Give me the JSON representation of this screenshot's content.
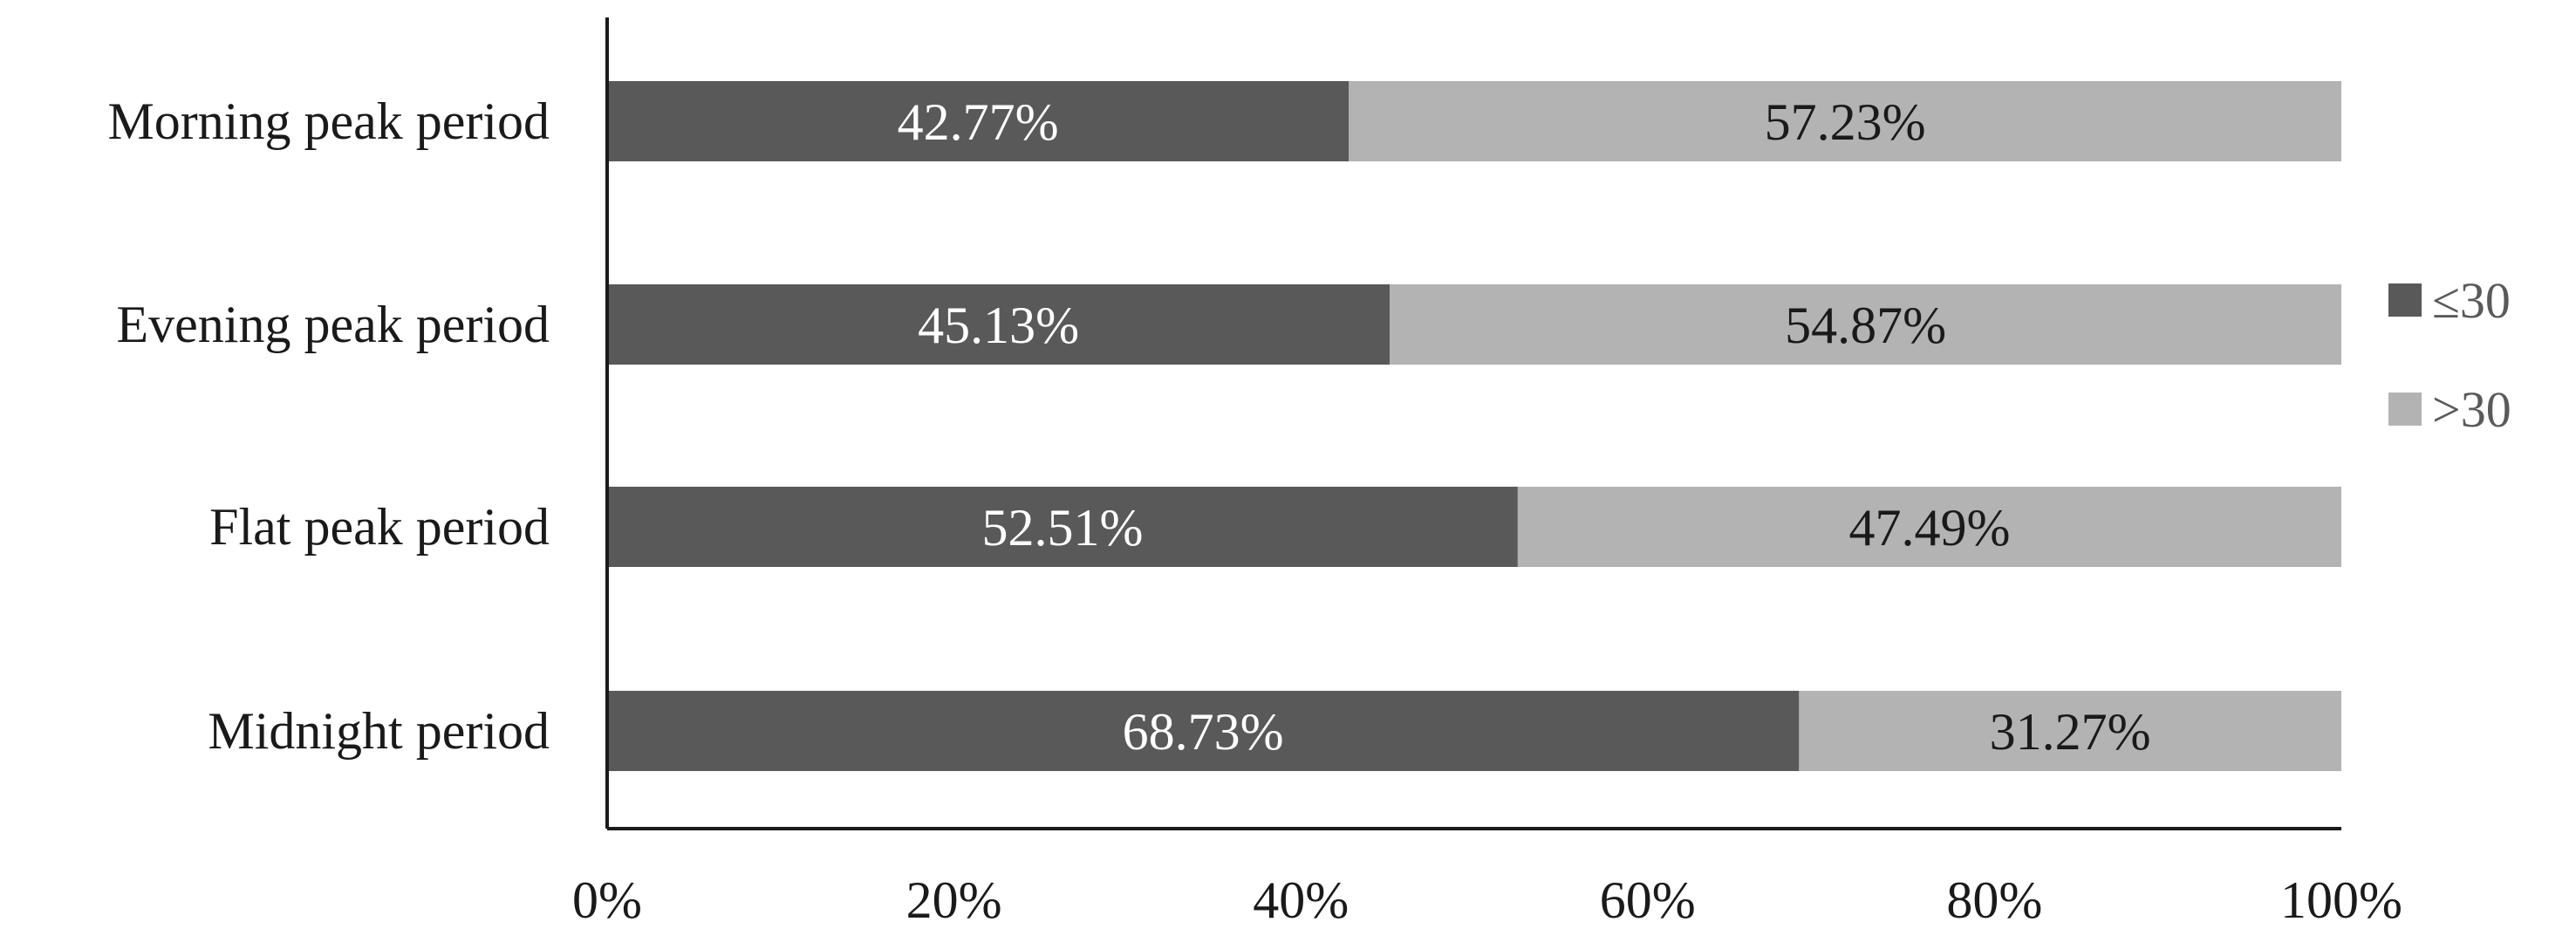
{
  "chart_data": {
    "type": "bar",
    "orientation": "horizontal",
    "stacked": true,
    "title": "",
    "xlabel": "",
    "ylabel": "",
    "xlim": [
      0,
      100
    ],
    "grid": false,
    "legend_position": "right",
    "categories": [
      "Morning peak period",
      "Evening peak period",
      "Flat peak period",
      "Midnight period"
    ],
    "series": [
      {
        "name": "≤30",
        "color": "#595959",
        "label_color": "#ffffff",
        "values": [
          42.77,
          45.13,
          52.51,
          68.73
        ],
        "labels": [
          "42.77%",
          "45.13%",
          "52.51%",
          "68.73%"
        ]
      },
      {
        "name": ">30",
        "color": "#b3b3b3",
        "label_color": "#1a1a1a",
        "values": [
          57.23,
          54.87,
          47.49,
          31.27
        ],
        "labels": [
          "57.23%",
          "54.87%",
          "47.49%",
          "31.27%"
        ]
      }
    ],
    "x_ticks": [
      0,
      20,
      40,
      60,
      80,
      100
    ],
    "x_tick_labels": [
      "0%",
      "20%",
      "40%",
      "60%",
      "80%",
      "100%"
    ]
  }
}
